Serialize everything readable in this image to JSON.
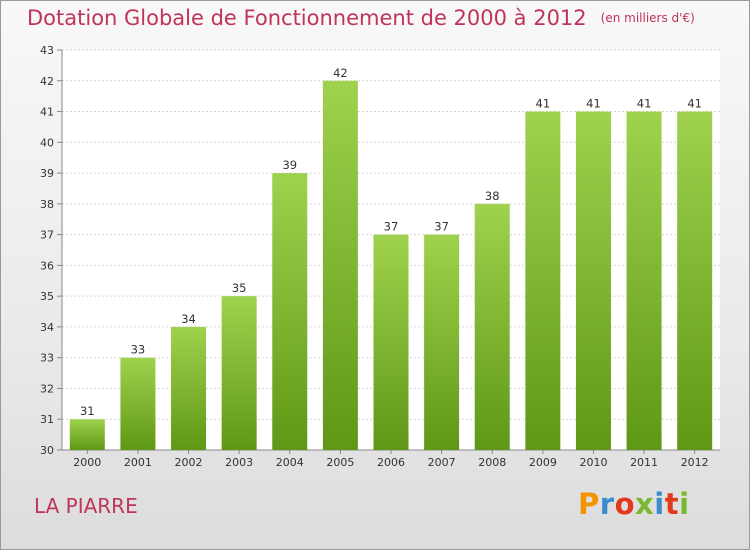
{
  "title": "Dotation Globale de Fonctionnement de 2000 à 2012",
  "unit_note": "(en milliers d'€)",
  "place": "LA PIARRE",
  "logo_text": "Proxiti",
  "logo_colors": [
    "#f29400",
    "#3a8ccc",
    "#e2381b",
    "#79b830",
    "#3a8ccc",
    "#e2381b",
    "#79b830"
  ],
  "colors": {
    "title": "#c0345a",
    "bar_top": "#9fd24d",
    "bar_bottom": "#5f9816"
  },
  "chart_data": {
    "type": "bar",
    "title": "Dotation Globale de Fonctionnement de 2000 à 2012",
    "subtitle": "(en milliers d'€)",
    "categories": [
      "2000",
      "2001",
      "2002",
      "2003",
      "2004",
      "2005",
      "2006",
      "2007",
      "2008",
      "2009",
      "2010",
      "2011",
      "2012"
    ],
    "values": [
      31,
      33,
      34,
      35,
      39,
      42,
      37,
      37,
      38,
      41,
      41,
      41,
      41
    ],
    "ylim": [
      30,
      43
    ],
    "yticks": [
      30,
      31,
      32,
      33,
      34,
      35,
      36,
      37,
      38,
      39,
      40,
      41,
      42,
      43
    ],
    "grid": true,
    "legend": "none"
  }
}
